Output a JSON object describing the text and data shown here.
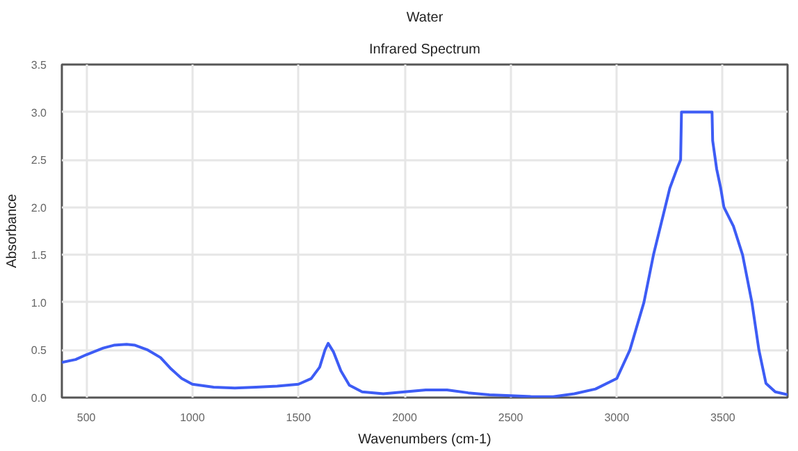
{
  "chart_data": {
    "type": "line",
    "title": "Water",
    "subtitle": "Infrared Spectrum",
    "xlabel": "Wavenumbers (cm-1)",
    "ylabel": "Absorbance",
    "xlim": [
      385,
      3805
    ],
    "ylim": [
      0,
      3.5
    ],
    "xticks": [
      500,
      1000,
      1500,
      2000,
      2500,
      3000,
      3500
    ],
    "yticks": [
      {
        "value": 0,
        "label": "0.0"
      },
      0.5,
      {
        "value": 1,
        "label": "1.0"
      },
      1.5,
      {
        "value": 2,
        "label": "2.0"
      },
      2.5,
      {
        "value": 3,
        "label": "3.0"
      },
      3.5
    ],
    "grid": true,
    "line_style": "solid",
    "marker": "none",
    "series": [
      {
        "color": "#3d5cf5",
        "x": [
          385,
          450,
          500,
          580,
          630,
          690,
          730,
          790,
          850,
          900,
          950,
          1000,
          1100,
          1200,
          1300,
          1400,
          1500,
          1560,
          1600,
          1625,
          1640,
          1665,
          1700,
          1740,
          1800,
          1900,
          2000,
          2100,
          2200,
          2300,
          2400,
          2500,
          2600,
          2700,
          2800,
          2900,
          3000,
          3062,
          3128,
          3173,
          3228,
          3250,
          3283,
          3301,
          3305,
          3449,
          3452,
          3471,
          3490,
          3505,
          3550,
          3593,
          3637,
          3670,
          3703,
          3747,
          3805
        ],
        "values": [
          0.37,
          0.4,
          0.45,
          0.52,
          0.55,
          0.56,
          0.55,
          0.5,
          0.42,
          0.3,
          0.2,
          0.14,
          0.11,
          0.1,
          0.11,
          0.12,
          0.14,
          0.2,
          0.32,
          0.5,
          0.57,
          0.48,
          0.28,
          0.13,
          0.06,
          0.04,
          0.06,
          0.08,
          0.08,
          0.05,
          0.03,
          0.02,
          0.01,
          0.01,
          0.04,
          0.09,
          0.2,
          0.5,
          1.0,
          1.5,
          2.0,
          2.2,
          2.4,
          2.5,
          3.0,
          3.0,
          2.7,
          2.4,
          2.2,
          2.0,
          1.8,
          1.5,
          1.0,
          0.5,
          0.15,
          0.06,
          0.03
        ]
      }
    ]
  }
}
